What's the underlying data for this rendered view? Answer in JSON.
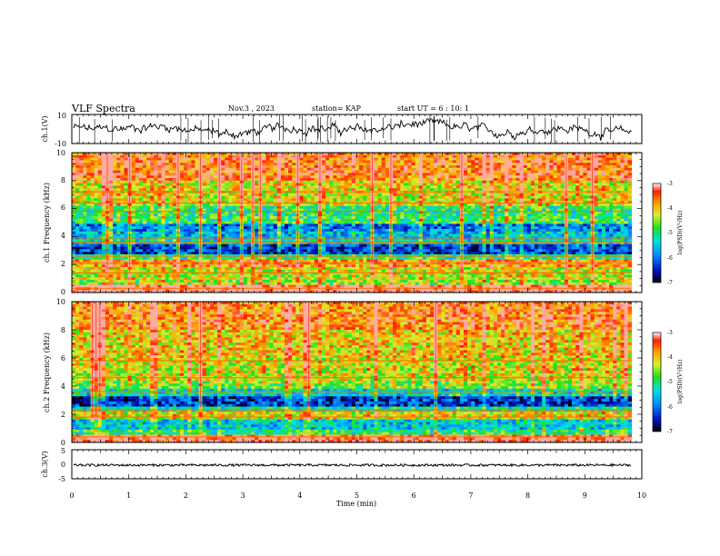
{
  "header": {
    "title": "VLF Spectra",
    "date": "Nov.3 , 2023",
    "station": "station= KAP",
    "start": "start UT = 6 : 10: 1"
  },
  "chart_data": {
    "type": "multi-panel",
    "x": {
      "label": "Time (min)",
      "range": [
        0,
        10
      ],
      "ticks": [
        "0",
        "1",
        "2",
        "3",
        "4",
        "5",
        "6",
        "7",
        "8",
        "9",
        "10"
      ],
      "data_end": 9.82
    },
    "panels": [
      {
        "id": "ch1-waveform",
        "type": "line",
        "ylabel": "ch.1(V)",
        "ylim": [
          -10,
          10
        ],
        "yticks": [
          "10",
          "-10"
        ],
        "envelope_min": -5,
        "envelope_max": 5
      },
      {
        "id": "ch1-spectrogram",
        "type": "heatmap",
        "ylabel": "ch.1 Frequency (kHz)",
        "ylim": [
          0,
          10
        ],
        "yticks": [
          "0",
          "2",
          "4",
          "6",
          "8",
          "10"
        ],
        "colorbar": {
          "label": "log(PSD)(V²/Hz)",
          "range": [
            -7,
            -3
          ],
          "ticks": [
            "-3",
            "-4",
            "-5",
            "-6",
            "-7"
          ]
        },
        "band_levels_kHz": [
          [
            0.0,
            0.5,
            -3.0
          ],
          [
            0.5,
            1.0,
            -4.5
          ],
          [
            1.0,
            1.8,
            -4.3
          ],
          [
            1.8,
            2.3,
            -3.8
          ],
          [
            2.3,
            2.8,
            -5.0
          ],
          [
            2.8,
            3.4,
            -6.3
          ],
          [
            3.4,
            3.8,
            -5.3
          ],
          [
            3.8,
            4.3,
            -5.6
          ],
          [
            4.3,
            5.0,
            -6.0
          ],
          [
            5.0,
            5.5,
            -4.9
          ],
          [
            5.5,
            6.2,
            -5.0
          ],
          [
            6.2,
            6.6,
            -4.2
          ],
          [
            6.6,
            8.0,
            -4.2
          ],
          [
            8.0,
            10.0,
            -3.6
          ]
        ],
        "line_frequencies_kHz": [
          0.3,
          1.4,
          2.1,
          2.6,
          3.6,
          3.9,
          5.8,
          6.4,
          7.2
        ]
      },
      {
        "id": "ch2-spectrogram",
        "type": "heatmap",
        "ylabel": "ch.2 Frequency (kHz)",
        "ylim": [
          0,
          10
        ],
        "yticks": [
          "0",
          "2",
          "4",
          "6",
          "8",
          "10"
        ],
        "colorbar": {
          "label": "log(PSD)(V²/Hz)",
          "range": [
            -7,
            -3
          ],
          "ticks": [
            "-3",
            "-4",
            "-5",
            "-6",
            "-7"
          ]
        },
        "band_levels_kHz": [
          [
            0.0,
            0.5,
            -3.2
          ],
          [
            0.5,
            1.0,
            -5.0
          ],
          [
            1.0,
            1.7,
            -5.5
          ],
          [
            1.7,
            2.2,
            -4.2
          ],
          [
            2.2,
            2.6,
            -5.2
          ],
          [
            2.6,
            3.2,
            -6.4
          ],
          [
            3.2,
            3.8,
            -5.4
          ],
          [
            3.8,
            4.4,
            -4.6
          ],
          [
            4.4,
            6.0,
            -4.3
          ],
          [
            6.0,
            8.0,
            -4.1
          ],
          [
            8.0,
            10.0,
            -3.7
          ]
        ],
        "line_frequencies_kHz": [
          0.4,
          1.8,
          2.3,
          3.6,
          4.6,
          5.8
        ]
      },
      {
        "id": "ch3-waveform",
        "type": "line",
        "ylabel": "ch.3(V)",
        "ylim": [
          -5,
          5
        ],
        "yticks": [
          "5",
          "0",
          "-5"
        ],
        "level": -0.3,
        "amplitude": 0.4
      }
    ]
  }
}
